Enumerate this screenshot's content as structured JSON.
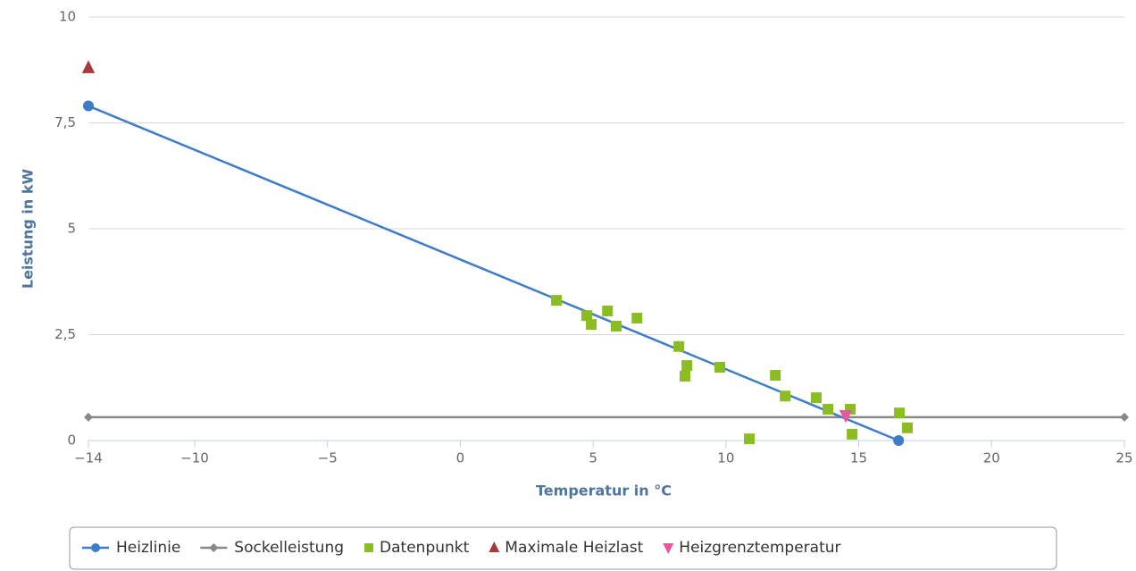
{
  "chart_data": {
    "type": "line",
    "x_label": "Temperatur in °C",
    "y_label": "Leistung in kW",
    "xlim": [
      -14,
      25
    ],
    "ylim": [
      0,
      10
    ],
    "xticks": [
      {
        "value": -14,
        "label": "−14"
      },
      {
        "value": -10,
        "label": "−10"
      },
      {
        "value": -5,
        "label": "−5"
      },
      0,
      5,
      10,
      15,
      20,
      25
    ],
    "yticks": [
      0,
      {
        "value": 2.5,
        "label": "2,5"
      },
      5,
      {
        "value": 7.5,
        "label": "7,5"
      },
      10
    ],
    "grid": true,
    "legend": "bottom",
    "series": [
      {
        "name": "Heizlinie",
        "type": "line",
        "marker": "circle",
        "color": "#3d7cc9",
        "x": [
          -14,
          16.5
        ],
        "values": [
          7.9,
          0
        ]
      },
      {
        "name": "Sockelleistung",
        "type": "line",
        "marker": "diamond",
        "color": "#888888",
        "x": [
          -14,
          25
        ],
        "values": [
          0.55,
          0.55
        ]
      },
      {
        "name": "Datenpunkt",
        "type": "scatter",
        "marker": "square",
        "color": "#8bbc21",
        "x": [
          3.62,
          4.76,
          4.93,
          5.54,
          5.87,
          6.65,
          8.23,
          8.53,
          8.46,
          9.77,
          10.88,
          11.86,
          12.23,
          13.4,
          13.84,
          14.68,
          14.75,
          16.53,
          16.83
        ],
        "values": [
          3.31,
          2.95,
          2.74,
          3.06,
          2.7,
          2.89,
          2.22,
          1.77,
          1.52,
          1.73,
          0.04,
          1.54,
          1.05,
          1.01,
          0.74,
          0.74,
          0.15,
          0.65,
          0.3
        ]
      },
      {
        "name": "Maximale Heizlast",
        "type": "scatter",
        "marker": "triangle",
        "color": "#a83a3a",
        "x": [
          -14
        ],
        "values": [
          8.8
        ]
      },
      {
        "name": "Heizgrenztemperatur",
        "type": "scatter",
        "marker": "triangle-down",
        "color": "#e8579b",
        "x": [
          14.51
        ],
        "values": [
          0.59
        ]
      }
    ]
  }
}
